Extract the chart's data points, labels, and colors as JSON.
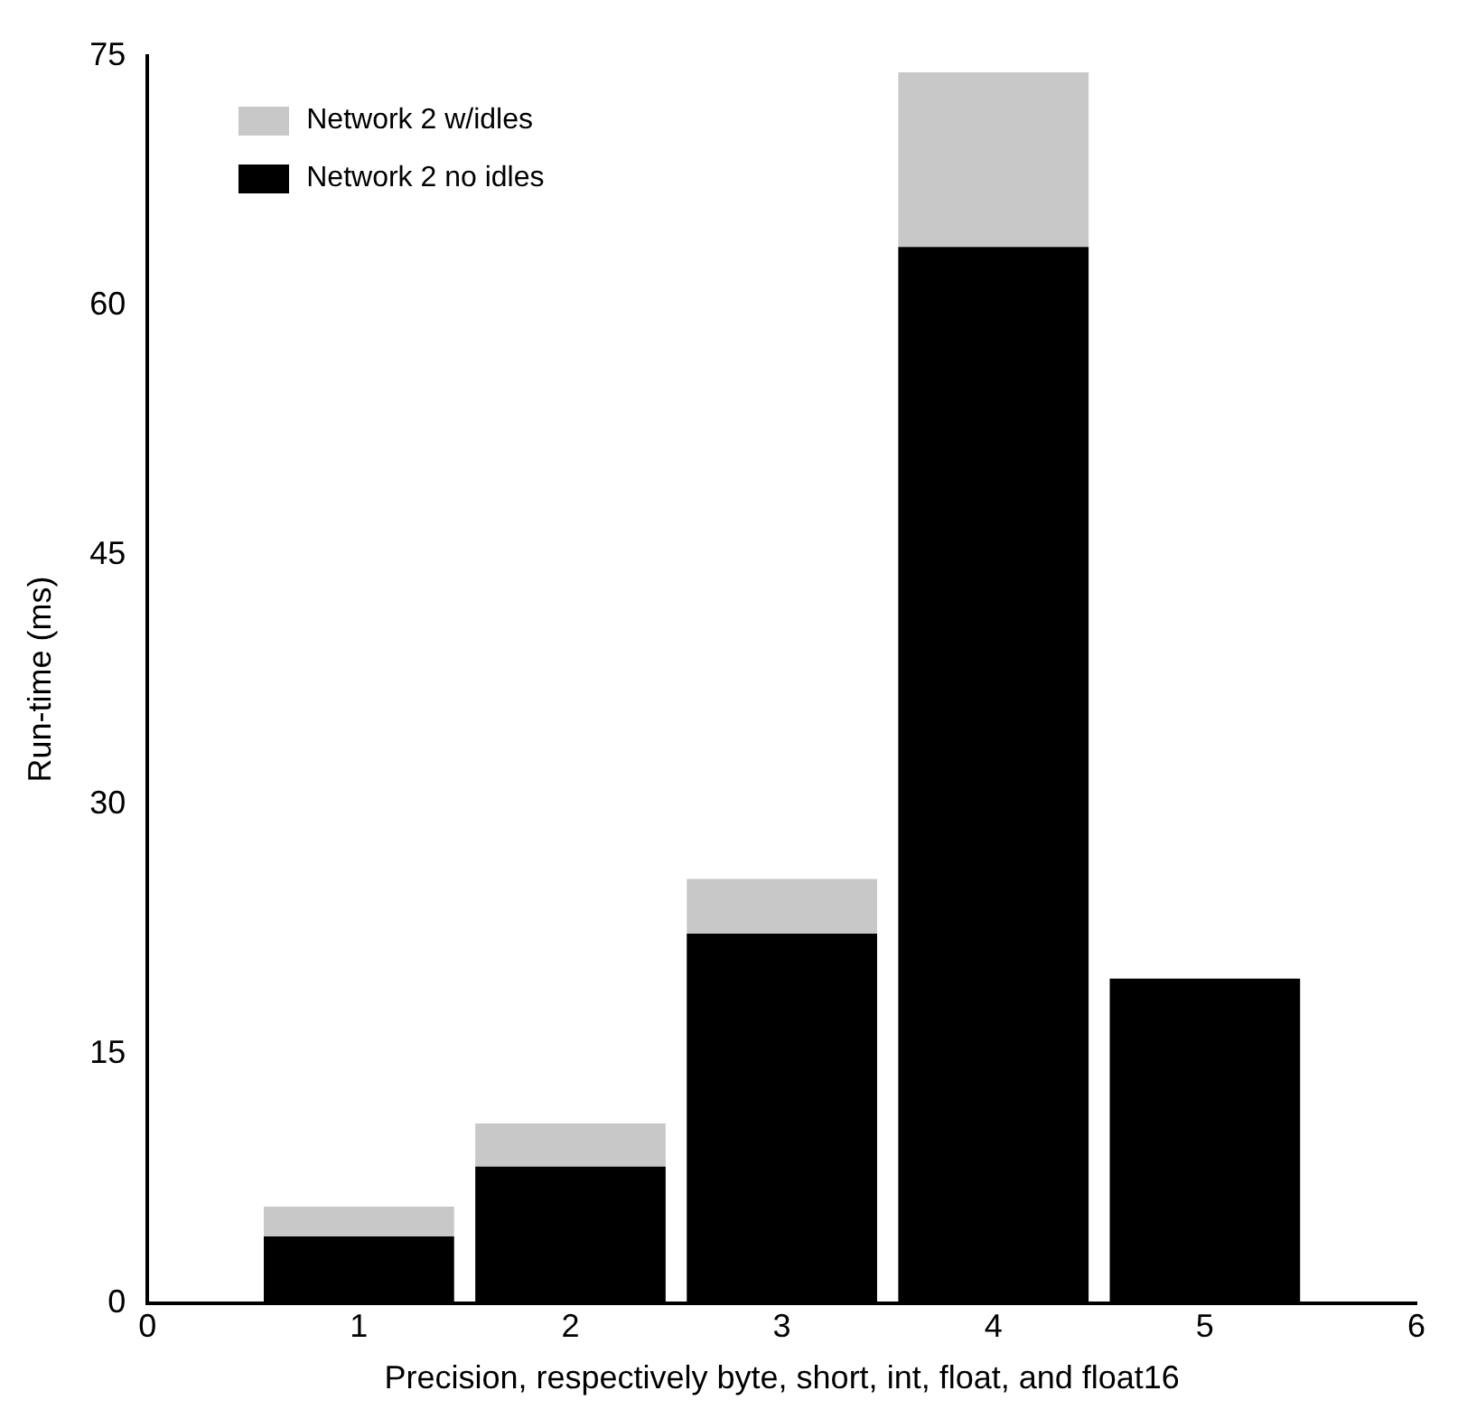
{
  "chart_data": {
    "type": "bar",
    "stacked": true,
    "xlabel": "Precision, respectively byte, short, int, float, and float16",
    "ylabel": "Run-time (ms)",
    "x": [
      1,
      2,
      3,
      4,
      5
    ],
    "series": [
      {
        "name": "Network 2 no idles",
        "color": "#000000",
        "values": [
          4.0,
          8.2,
          22.2,
          63.5,
          19.5
        ]
      },
      {
        "name": "Network 2 w/idles",
        "color": "#c8c8c8",
        "values": [
          1.8,
          2.6,
          3.3,
          10.5,
          null
        ]
      }
    ],
    "xlim": [
      0,
      6
    ],
    "xticks": [
      0,
      1,
      2,
      3,
      4,
      5,
      6
    ],
    "ylim": [
      0,
      75
    ],
    "yticks": [
      0,
      15,
      30,
      45,
      60,
      75
    ],
    "grid": false,
    "legend": "top left"
  }
}
